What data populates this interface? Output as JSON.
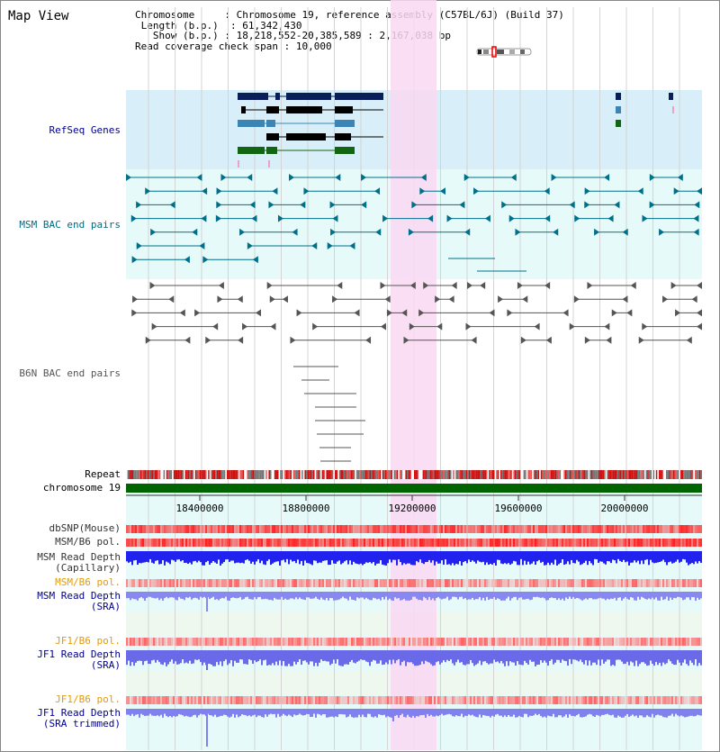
{
  "map_view": {
    "title": "Map View",
    "info": {
      "chromosome_label": "Chromosome",
      "chromosome_value": "Chromosome 19, reference assembly (C57BL/6J) (Build 37)",
      "length_label": "Length (b.p.)",
      "length_value": "61,342,430",
      "show_label": "Show (b.p.)",
      "show_value": "18,218,552-20,385,589 : 2,167,038 bp",
      "coverage_label": "Read coverage check span",
      "coverage_value": "10,000"
    }
  },
  "tracks": {
    "refseq": "RefSeq Genes",
    "msm_bac": "MSM BAC end pairs",
    "b6n_bac": "B6N BAC end pairs",
    "repeat": "Repeat",
    "chromosome": "chromosome 19",
    "dbsnp": "dbSNP(Mouse)",
    "msm_b6_pol": "MSM/B6 pol.",
    "msm_depth_cap": "MSM Read Depth\n(Capillary)",
    "msm_b6_pol2": "MSM/B6 pol.",
    "msm_depth_sra": "MSM Read Depth\n(SRA)",
    "jf1_b6_pol": "JF1/B6 pol.",
    "jf1_depth_sra": "JF1 Read Depth\n(SRA)",
    "jf1_b6_pol2": "JF1/B6 pol.",
    "jf1_depth_trim": "JF1 Read Depth\n(SRA trimmed)"
  },
  "axis": {
    "ticks": [
      "18400000",
      "18800000",
      "19200000",
      "19600000",
      "20000000"
    ]
  },
  "colors": {
    "highlight": "#f9d8f2",
    "refseq_bg": "#d8eef8",
    "bac_bg": "#e6fafa",
    "chrom_green": "#006400",
    "label_blue": "#00008b",
    "label_teal": "#006b80",
    "label_gray": "#555555",
    "label_orange": "#e69a00"
  }
}
